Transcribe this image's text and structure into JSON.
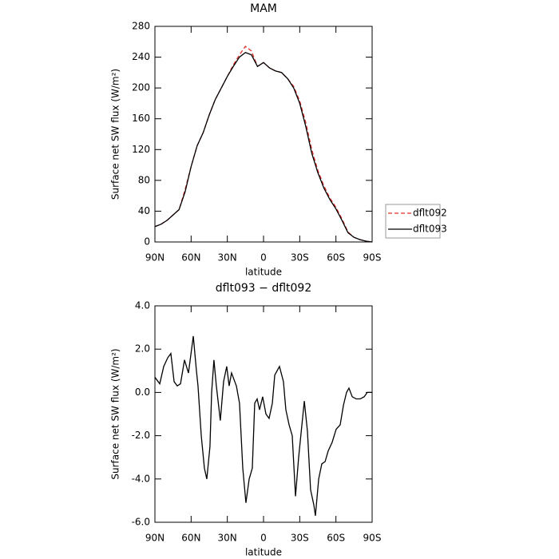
{
  "chart_data": [
    {
      "type": "line",
      "title": "MAM",
      "x_label": "latitude",
      "y_label": "Surface net SW flux (W/m²)",
      "x": [
        90,
        85,
        80,
        75,
        70,
        65,
        60,
        55,
        50,
        45,
        40,
        35,
        30,
        25,
        20,
        15,
        10,
        5,
        0,
        -5,
        -10,
        -15,
        -20,
        -25,
        -30,
        -35,
        -40,
        -45,
        -50,
        -55,
        -60,
        -65,
        -70,
        -75,
        -80,
        -85,
        -90
      ],
      "series": [
        {
          "name": "dflt092",
          "color": "#e0302a",
          "dashed": true,
          "values": [
            20,
            23,
            28,
            35,
            42,
            68,
            98,
            125,
            142,
            165,
            185,
            200,
            215,
            230,
            243,
            254,
            248,
            228,
            233,
            226,
            222,
            220,
            212,
            202,
            183,
            155,
            120,
            93,
            73,
            57,
            45,
            30,
            13,
            6,
            3,
            1,
            0
          ]
        },
        {
          "name": "dflt093",
          "color": "#000000",
          "dashed": false,
          "values": [
            20,
            23,
            28,
            35,
            42,
            65,
            98,
            125,
            142,
            165,
            185,
            200,
            215,
            228,
            240,
            246,
            243,
            228,
            233,
            226,
            222,
            220,
            212,
            200,
            180,
            150,
            115,
            90,
            70,
            55,
            43,
            28,
            12,
            6,
            3,
            1,
            0
          ]
        }
      ],
      "xlim": [
        90,
        -90
      ],
      "xticks": [
        {
          "value": 90,
          "label": "90N"
        },
        {
          "value": 60,
          "label": "60N"
        },
        {
          "value": 30,
          "label": "30N"
        },
        0,
        {
          "value": -30,
          "label": "30S"
        },
        {
          "value": -60,
          "label": "60S"
        },
        {
          "value": -90,
          "label": "90S"
        }
      ],
      "ylim": [
        0,
        280
      ],
      "yticks": [
        0,
        40,
        80,
        120,
        160,
        200,
        240,
        280
      ],
      "legend": "right"
    },
    {
      "type": "line",
      "title": "dflt093 − dflt092",
      "x_label": "latitude",
      "y_label": "Surface net SW flux (W/m²)",
      "x": [
        90,
        86.0,
        82.7,
        79.4,
        76.8,
        74.1,
        71.5,
        68.8,
        65.5,
        62.2,
        58.2,
        55.6,
        54.3,
        51.6,
        49.0,
        47.0,
        44.4,
        43.0,
        41.1,
        39.1,
        35.8,
        33.1,
        30.5,
        28.5,
        26.5,
        22.5,
        19.9,
        17.2,
        14.6,
        11.9,
        9.3,
        7.3,
        5.3,
        3.3,
        0.7,
        -2.0,
        -4.6,
        -7.3,
        -9.3,
        -13.2,
        -16.5,
        -18.5,
        -21.2,
        -23.8,
        -26.5,
        -29.1,
        -31.8,
        -33.8,
        -36.4,
        -39.0,
        -41.7,
        -43.0,
        -45.7,
        -48.3,
        -51.0,
        -53.6,
        -56.9,
        -60.2,
        -63.5,
        -66.2,
        -68.8,
        -70.8,
        -73.5,
        -76.8,
        -80.1,
        -83.4,
        -86.0,
        -90
      ],
      "series": [
        {
          "name": "dflt093 − dflt092",
          "color": "#000000",
          "dashed": false,
          "values": [
            0.7,
            0.4,
            1.2,
            1.6,
            1.8,
            0.5,
            0.3,
            0.4,
            1.5,
            0.9,
            2.6,
            1.0,
            0.3,
            -2.0,
            -3.5,
            -4.0,
            -2.5,
            0.0,
            1.5,
            0.3,
            -1.3,
            0.5,
            1.2,
            0.3,
            0.9,
            0.3,
            -0.5,
            -3.5,
            -5.1,
            -4.0,
            -3.5,
            -0.5,
            -0.3,
            -0.8,
            -0.2,
            -1.0,
            -1.2,
            -0.5,
            0.8,
            1.2,
            0.5,
            -0.8,
            -1.5,
            -2.0,
            -4.8,
            -3.0,
            -1.5,
            -0.4,
            -1.8,
            -4.5,
            -5.2,
            -5.7,
            -4.0,
            -3.3,
            -3.2,
            -2.7,
            -2.3,
            -1.7,
            -1.5,
            -0.6,
            0.0,
            0.2,
            -0.2,
            -0.3,
            -0.3,
            -0.2,
            0.0,
            0.0
          ]
        }
      ],
      "xlim": [
        90,
        -90
      ],
      "xticks": [
        {
          "value": 90,
          "label": "90N"
        },
        {
          "value": 60,
          "label": "60N"
        },
        {
          "value": 30,
          "label": "30N"
        },
        0,
        {
          "value": -30,
          "label": "30S"
        },
        {
          "value": -60,
          "label": "60S"
        },
        {
          "value": -90,
          "label": "90S"
        }
      ],
      "ylim": [
        -6,
        4
      ],
      "yticks": [
        {
          "value": -6,
          "label": "-6.0"
        },
        {
          "value": -4,
          "label": "-4.0"
        },
        {
          "value": -2,
          "label": "-2.0"
        },
        {
          "value": 0,
          "label": "0.0"
        },
        {
          "value": 2,
          "label": "2.0"
        },
        {
          "value": 4,
          "label": "4.0"
        }
      ]
    }
  ]
}
